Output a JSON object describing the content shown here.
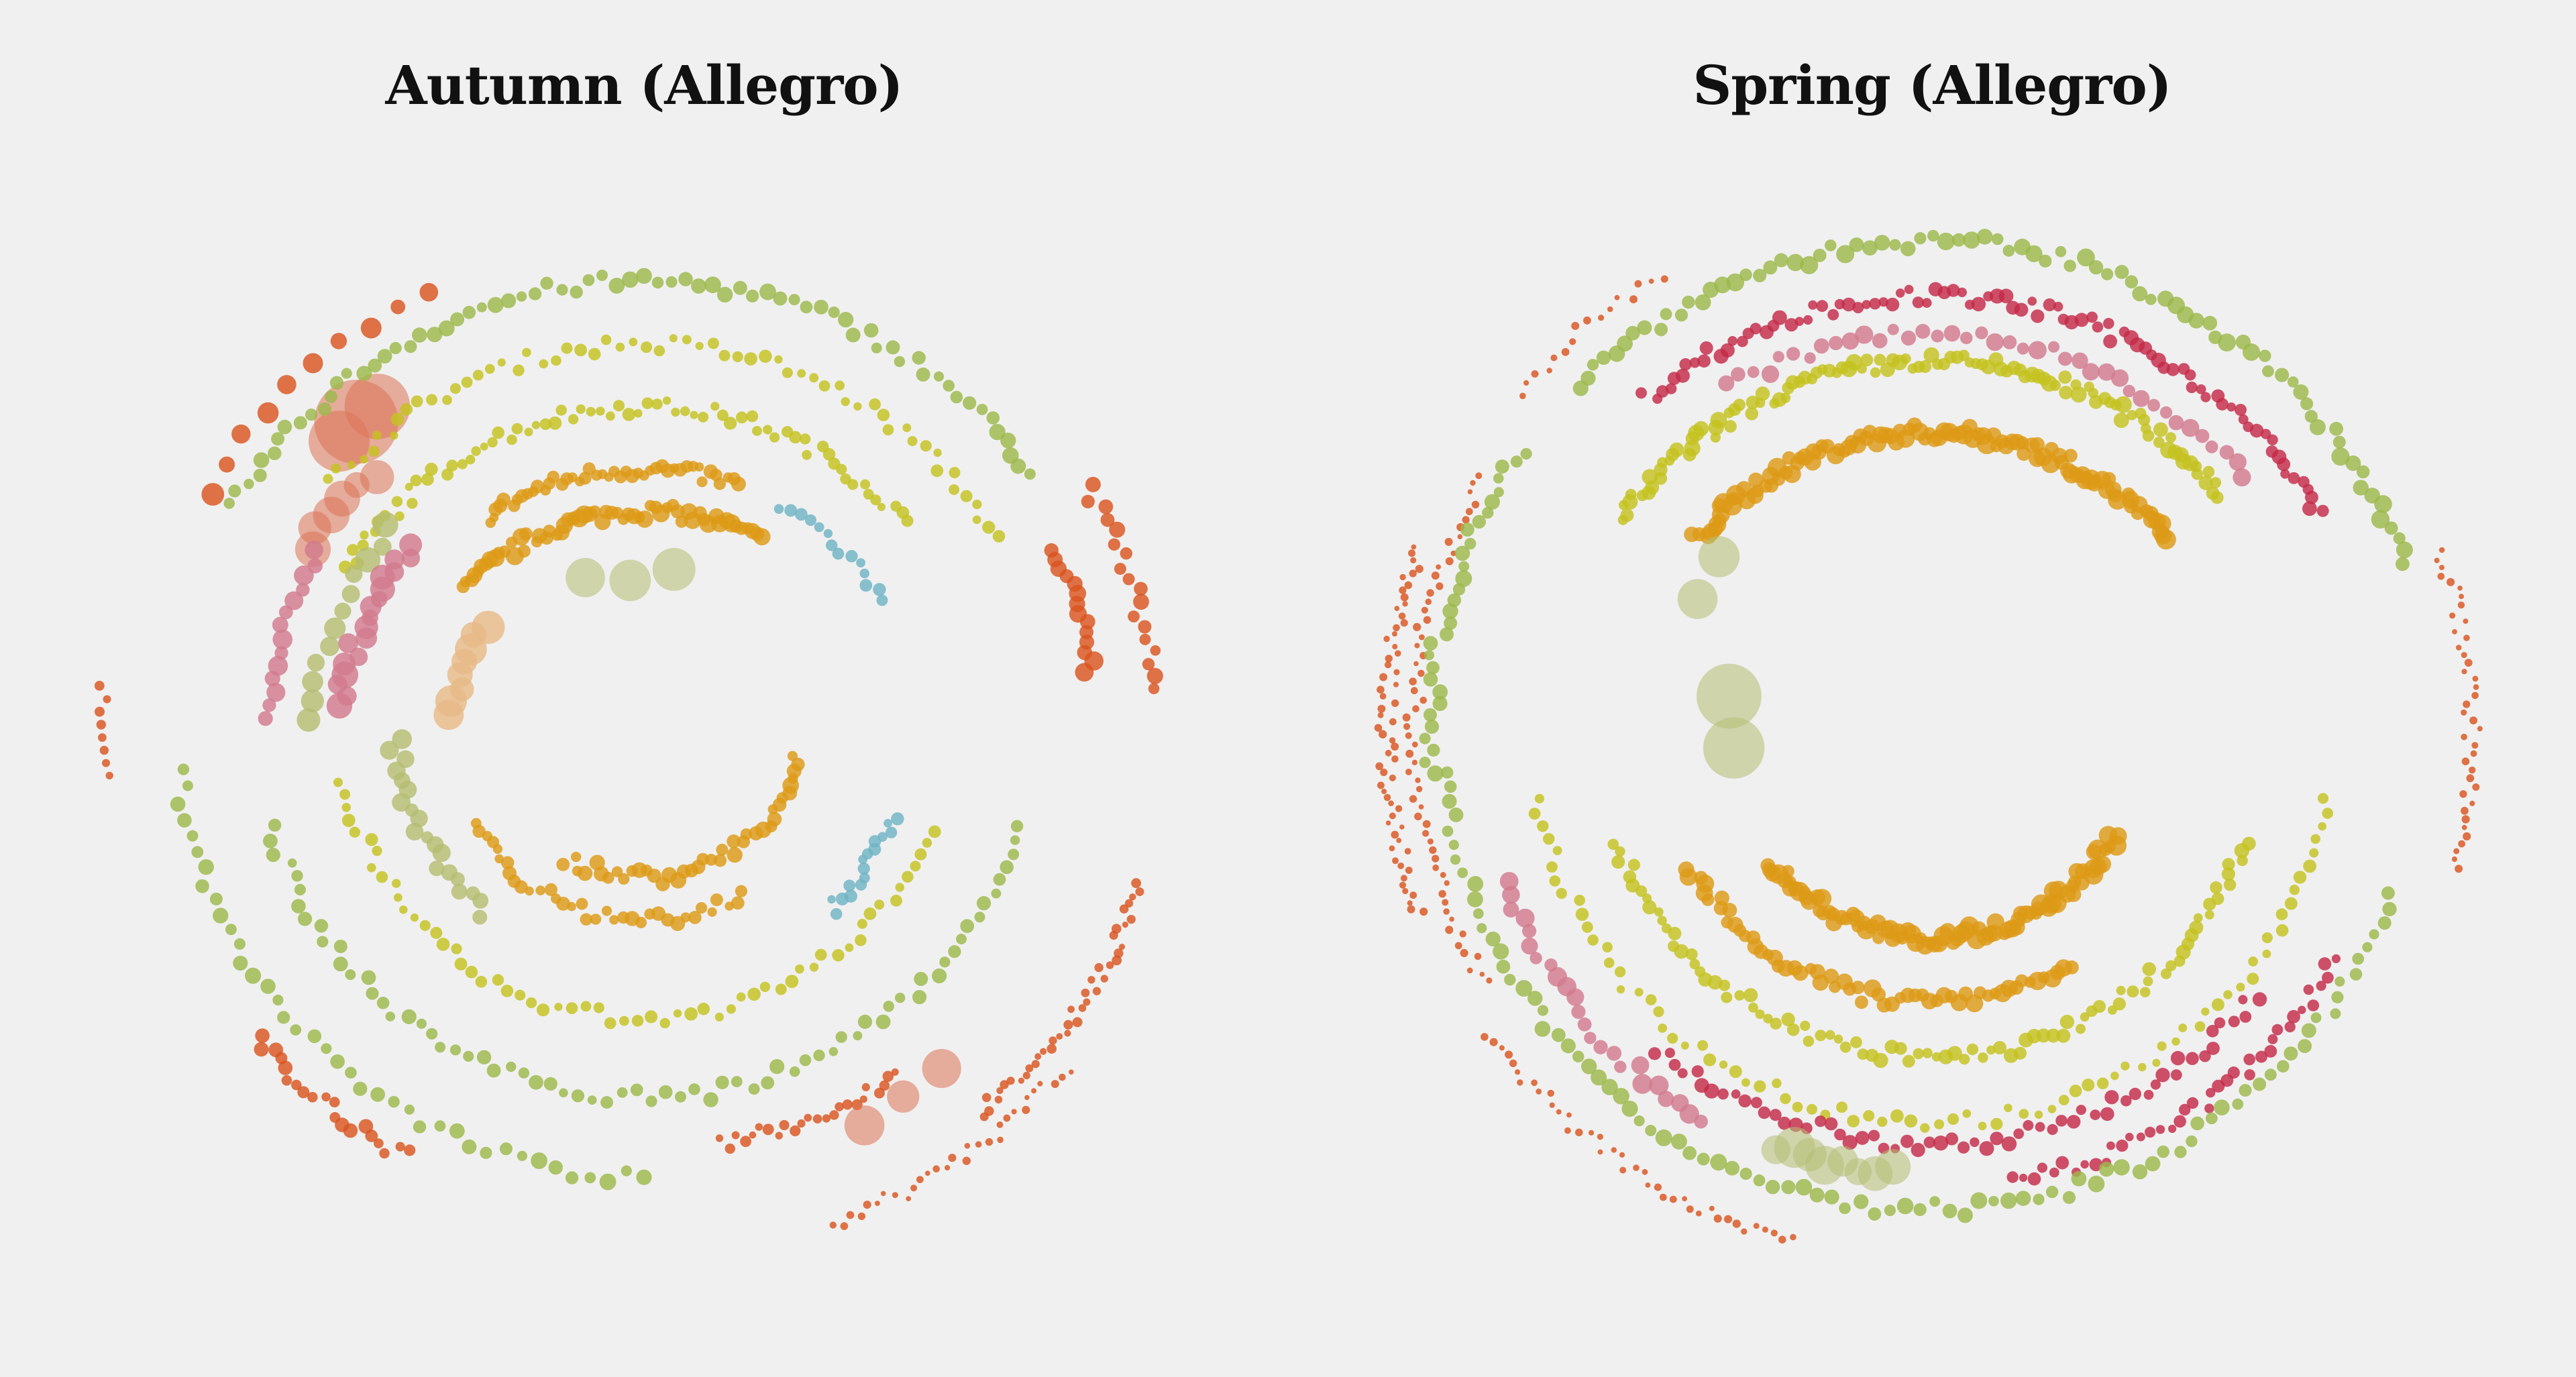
{
  "palette": {
    "background": "#f0f0f0",
    "title": "#111111",
    "orange_red": "#d9541e",
    "amber": "#dd9a16",
    "yellow_green": "#c4c21f",
    "olive_green": "#9cb84a",
    "leaf_green": "#78a844",
    "sage": "#b4bd72",
    "rose": "#d27a8e",
    "crimson": "#c42a48",
    "teal": "#6fb3c4",
    "peach": "#e8b987",
    "salmon": "#dc7356"
  },
  "chart_data": [
    {
      "type": "scatter",
      "title": "Autumn (Allegro)",
      "xlabel": "",
      "ylabel": "",
      "grid": false,
      "legend": "none",
      "encoding": "polar note plot: each dot is a note; radius-rings are grouped phrases; colour groups by hue family",
      "series": [
        {
          "color_key": "orange_red",
          "arcs": [
            {
              "r": 0.92,
              "a0": -150,
              "a1": -115,
              "n": 10,
              "s": 14
            },
            {
              "r": 0.93,
              "a0": -30,
              "a1": -5,
              "n": 18,
              "s": 10
            },
            {
              "r": 0.82,
              "a0": -25,
              "a1": -8,
              "n": 14,
              "s": 12
            },
            {
              "r": 0.92,
              "a0": 118,
              "a1": 140,
              "n": 20,
              "s": 9
            },
            {
              "r": 0.95,
              "a0": 18,
              "a1": 50,
              "n": 40,
              "s": 6
            },
            {
              "r": 1.0,
              "a0": 40,
              "a1": 70,
              "n": 30,
              "s": 5
            },
            {
              "r": 0.98,
              "a0": 175,
              "a1": 185,
              "n": 8,
              "s": 6
            },
            {
              "r": 0.8,
              "a0": 55,
              "a1": 80,
              "n": 24,
              "s": 7
            }
          ]
        },
        {
          "color_key": "salmon",
          "arcs": [
            {
              "r": 0.78,
              "a0": -135,
              "a1": -128,
              "n": 3,
              "s": 60
            },
            {
              "r": 0.7,
              "a0": -150,
              "a1": -135,
              "n": 6,
              "s": 24
            },
            {
              "r": 0.85,
              "a0": 50,
              "a1": 62,
              "n": 3,
              "s": 28
            }
          ]
        },
        {
          "color_key": "amber",
          "arcs": [
            {
              "r": 0.42,
              "a0": -140,
              "a1": -60,
              "n": 60,
              "s": 11
            },
            {
              "r": 0.5,
              "a0": -125,
              "a1": -70,
              "n": 45,
              "s": 9
            },
            {
              "r": 0.28,
              "a0": 10,
              "a1": 120,
              "n": 40,
              "s": 10
            },
            {
              "r": 0.36,
              "a0": 60,
              "a1": 150,
              "n": 36,
              "s": 9
            }
          ]
        },
        {
          "color_key": "peach",
          "arcs": [
            {
              "r": 0.35,
              "a0": -175,
              "a1": -145,
              "n": 8,
              "s": 20
            }
          ]
        },
        {
          "color_key": "yellow_green",
          "arcs": [
            {
              "r": 0.62,
              "a0": -150,
              "a1": -40,
              "n": 70,
              "s": 8
            },
            {
              "r": 0.74,
              "a0": -140,
              "a1": -30,
              "n": 60,
              "s": 8
            },
            {
              "r": 0.55,
              "a0": 20,
              "a1": 170,
              "n": 60,
              "s": 8
            }
          ]
        },
        {
          "color_key": "olive_green",
          "arcs": [
            {
              "r": 0.86,
              "a0": -150,
              "a1": -35,
              "n": 70,
              "s": 10
            },
            {
              "r": 0.7,
              "a0": 15,
              "a1": 165,
              "n": 70,
              "s": 9
            },
            {
              "r": 0.85,
              "a0": 90,
              "a1": 175,
              "n": 40,
              "s": 10
            }
          ]
        },
        {
          "color_key": "sage",
          "arcs": [
            {
              "r": 0.3,
              "a0": -110,
              "a1": -80,
              "n": 3,
              "s": 26
            },
            {
              "r": 0.6,
              "a0": -178,
              "a1": -140,
              "n": 12,
              "s": 16
            },
            {
              "r": 0.45,
              "a0": 130,
              "a1": 178,
              "n": 20,
              "s": 12
            }
          ]
        },
        {
          "color_key": "rose",
          "arcs": [
            {
              "r": 0.55,
              "a0": -175,
              "a1": -140,
              "n": 18,
              "s": 16
            },
            {
              "r": 0.68,
              "a0": -178,
              "a1": -150,
              "n": 14,
              "s": 12
            }
          ]
        },
        {
          "color_key": "teal",
          "arcs": [
            {
              "r": 0.5,
              "a0": -60,
              "a1": -30,
              "n": 14,
              "s": 8
            },
            {
              "r": 0.48,
              "a0": 20,
              "a1": 45,
              "n": 16,
              "s": 8
            }
          ]
        }
      ]
    },
    {
      "type": "scatter",
      "title": "Spring (Allegro)",
      "xlabel": "",
      "ylabel": "",
      "grid": false,
      "legend": "none",
      "encoding": "polar note plot: each dot is a note; radius-rings are grouped phrases; colour groups by hue family",
      "series": [
        {
          "color_key": "orange_red",
          "arcs": [
            {
              "r": 0.98,
              "a0": 160,
              "a1": 200,
              "n": 60,
              "s": 5
            },
            {
              "r": 0.93,
              "a0": 150,
              "a1": 210,
              "n": 60,
              "s": 5
            },
            {
              "r": 0.97,
              "a0": -140,
              "a1": -120,
              "n": 16,
              "s": 5
            },
            {
              "r": 0.97,
              "a0": 105,
              "a1": 145,
              "n": 40,
              "s": 5
            },
            {
              "r": 0.97,
              "a0": -20,
              "a1": 15,
              "n": 40,
              "s": 5
            }
          ]
        },
        {
          "color_key": "amber",
          "arcs": [
            {
              "r": 0.55,
              "a0": -140,
              "a1": -40,
              "n": 110,
              "s": 12
            },
            {
              "r": 0.38,
              "a0": 30,
              "a1": 140,
              "n": 90,
              "s": 12
            },
            {
              "r": 0.5,
              "a0": 60,
              "a1": 150,
              "n": 60,
              "s": 11
            }
          ]
        },
        {
          "color_key": "yellow_green",
          "arcs": [
            {
              "r": 0.68,
              "a0": -145,
              "a1": -40,
              "n": 110,
              "s": 10
            },
            {
              "r": 0.6,
              "a0": 20,
              "a1": 160,
              "n": 90,
              "s": 9
            },
            {
              "r": 0.72,
              "a0": 10,
              "a1": 170,
              "n": 80,
              "s": 8
            }
          ]
        },
        {
          "color_key": "crimson",
          "arcs": [
            {
              "r": 0.8,
              "a0": -130,
              "a1": -30,
              "n": 90,
              "s": 9
            },
            {
              "r": 0.76,
              "a0": 40,
              "a1": 130,
              "n": 60,
              "s": 9
            },
            {
              "r": 0.84,
              "a0": 30,
              "a1": 80,
              "n": 40,
              "s": 8
            }
          ]
        },
        {
          "color_key": "rose",
          "arcs": [
            {
              "r": 0.73,
              "a0": -120,
              "a1": -40,
              "n": 40,
              "s": 11
            },
            {
              "r": 0.82,
              "a0": 120,
              "a1": 160,
              "n": 24,
              "s": 12
            }
          ]
        },
        {
          "color_key": "olive_green",
          "arcs": [
            {
              "r": 0.9,
              "a0": -135,
              "a1": -20,
              "n": 80,
              "s": 11
            },
            {
              "r": 0.88,
              "a0": 20,
              "a1": 175,
              "n": 90,
              "s": 10
            },
            {
              "r": 0.9,
              "a0": 175,
              "a1": 215,
              "n": 30,
              "s": 10
            }
          ]
        },
        {
          "color_key": "sage",
          "arcs": [
            {
              "r": 0.37,
              "a0": 175,
              "a1": 190,
              "n": 2,
              "s": 56
            },
            {
              "r": 0.5,
              "a0": -150,
              "a1": -140,
              "n": 2,
              "s": 30
            },
            {
              "r": 0.82,
              "a0": 95,
              "a1": 110,
              "n": 8,
              "s": 26
            }
          ]
        }
      ]
    }
  ]
}
